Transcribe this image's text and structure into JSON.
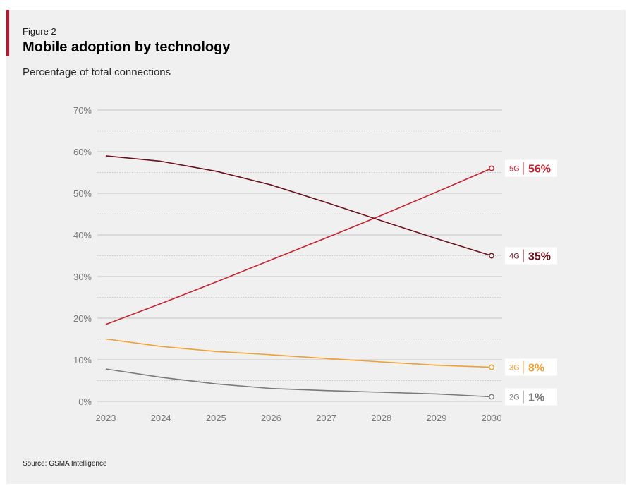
{
  "header": {
    "figure_label": "Figure 2",
    "title": "Mobile adoption by technology",
    "subtitle": "Percentage of total connections"
  },
  "footer": {
    "source": "Source: GSMA Intelligence"
  },
  "chart_data": {
    "type": "line",
    "title": "Mobile adoption by technology",
    "subtitle": "Percentage of total connections",
    "x": [
      "2023",
      "2024",
      "2025",
      "2026",
      "2027",
      "2028",
      "2029",
      "2030"
    ],
    "y_ticks": [
      "0%",
      "10%",
      "20%",
      "30%",
      "40%",
      "50%",
      "60%",
      "70%"
    ],
    "ylim": [
      0,
      70
    ],
    "grid": "horizontal",
    "series": [
      {
        "name": "5G",
        "end_label": "56%",
        "color": "#c8202f",
        "values": [
          18.5,
          23.5,
          28.7,
          34,
          39.3,
          44.7,
          50.3,
          56
        ]
      },
      {
        "name": "4G",
        "end_label": "35%",
        "color": "#6b0f1a",
        "values": [
          59,
          57.7,
          55.3,
          52,
          47.8,
          43.4,
          39.1,
          35
        ]
      },
      {
        "name": "3G",
        "end_label": "8%",
        "color": "#f0a030",
        "values": [
          15,
          13.2,
          12,
          11.2,
          10.3,
          9.5,
          8.7,
          8.2
        ]
      },
      {
        "name": "2G",
        "end_label": "1%",
        "color": "#7a7a7a",
        "values": [
          7.8,
          5.8,
          4.2,
          3.1,
          2.6,
          2.2,
          1.8,
          1.1
        ]
      }
    ]
  }
}
